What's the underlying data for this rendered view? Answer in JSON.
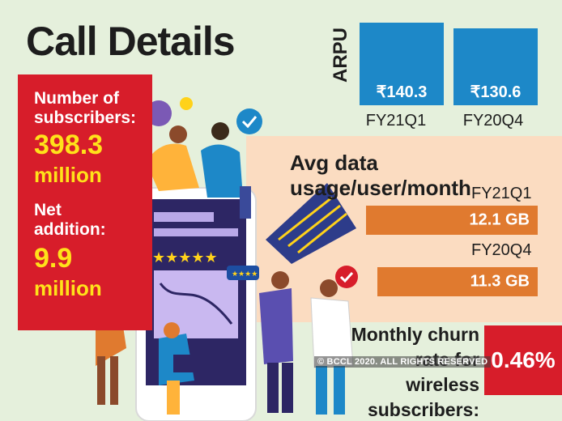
{
  "title": "Call Details",
  "subscribers": {
    "label": "Number of subscribers:",
    "value": "398.3",
    "unit": "million",
    "net_label": "Net addition:",
    "net_value": "9.9",
    "net_unit": "million"
  },
  "arpu": {
    "label": "ARPU",
    "bars": [
      {
        "value": "₹140.3",
        "quarter": "FY21Q1",
        "amount": 140.3
      },
      {
        "value": "₹130.6",
        "quarter": "FY20Q4",
        "amount": 130.6
      }
    ],
    "color": "#1d88c8"
  },
  "data_usage": {
    "title": "Avg data usage/user/month",
    "rows": [
      {
        "quarter": "FY21Q1",
        "value": "12.1 GB",
        "amount": 12.1
      },
      {
        "quarter": "FY20Q4",
        "value": "11.3 GB",
        "amount": 11.3
      }
    ],
    "color": "#e07a2f"
  },
  "churn": {
    "label": "Monthly churn rate for wireless subscribers:",
    "value": "0.46%"
  },
  "credit": "© BCCL 2020. ALL RIGHTS RESERVED",
  "colors": {
    "red": "#d71d2a",
    "yellow": "#ffe21a",
    "peach": "#fbdcc1",
    "background": "#e5f0dc"
  }
}
